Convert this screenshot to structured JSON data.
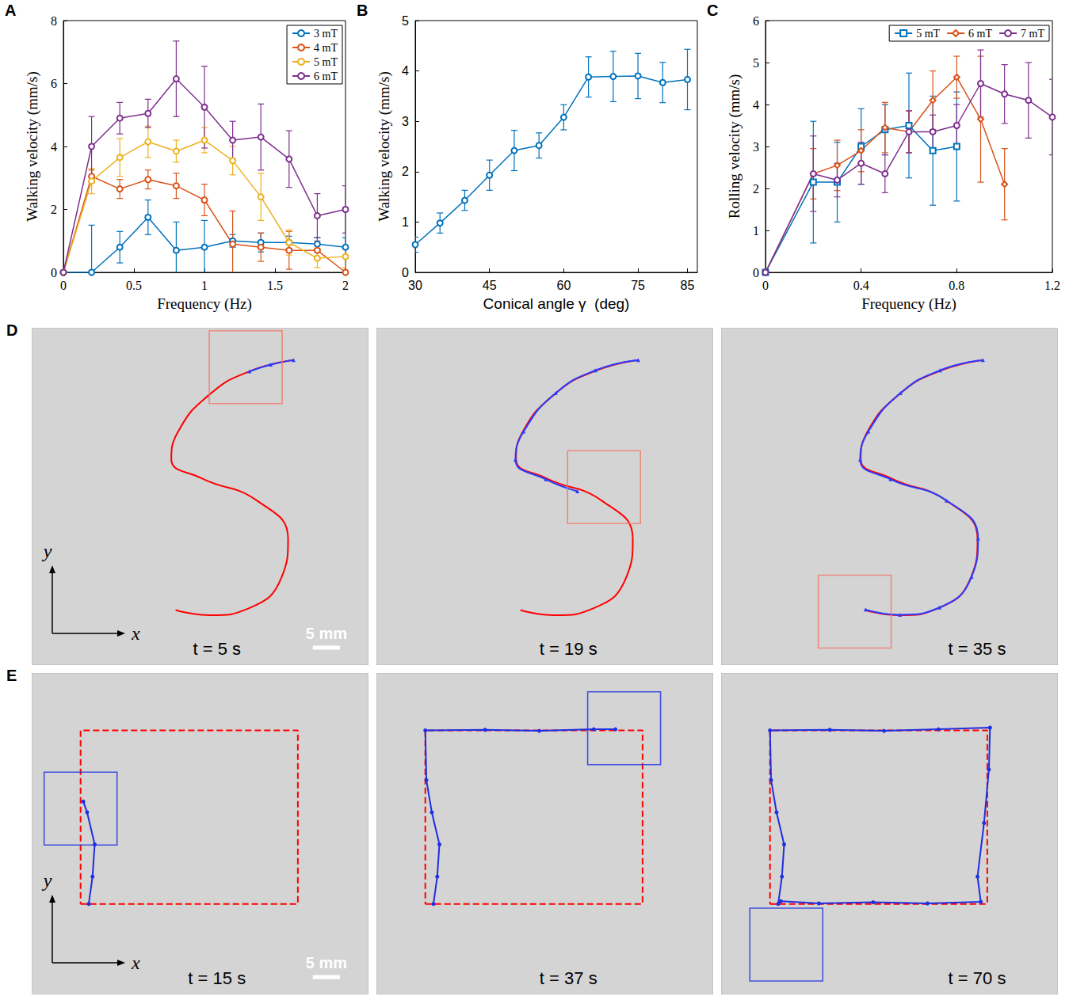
{
  "chart_data": [
    {
      "panel": "A",
      "type": "line",
      "xlabel": "Frequency (Hz)",
      "ylabel": "Walking velocity (mm/s)",
      "x": [
        0,
        0.2,
        0.4,
        0.6,
        0.8,
        1,
        1.2,
        1.4,
        1.6,
        1.8,
        2
      ],
      "xlim": [
        0,
        2
      ],
      "xticks": [
        0,
        0.5,
        1,
        1.5,
        2
      ],
      "ylim": [
        0,
        8
      ],
      "yticks": [
        0,
        2,
        4,
        6,
        8
      ],
      "legend": "upper right",
      "series": [
        {
          "name": "3 mT",
          "color": "#0072bd",
          "marker": "open circle",
          "values": [
            0,
            0,
            0.8,
            1.75,
            0.7,
            0.8,
            1.0,
            0.95,
            0.95,
            0.9,
            0.8
          ],
          "errors": [
            0,
            1.5,
            0.5,
            0.55,
            0.9,
            0.85,
            0.2,
            0.3,
            0.2,
            0.2,
            0.3
          ]
        },
        {
          "name": "4 mT",
          "color": "#d95319",
          "marker": "open circle",
          "values": [
            0,
            3.05,
            2.65,
            2.95,
            2.75,
            2.3,
            0.9,
            0.8,
            0.7,
            0.7,
            0
          ],
          "errors": [
            0,
            0.2,
            0.3,
            0.3,
            0.4,
            0.5,
            1.05,
            0.45,
            0.6,
            0.3,
            0
          ]
        },
        {
          "name": "5 mT",
          "color": "#edb120",
          "marker": "open circle",
          "values": [
            0,
            2.9,
            3.65,
            4.15,
            3.85,
            4.2,
            3.55,
            2.4,
            0.95,
            0.45,
            0.5
          ],
          "errors": [
            0,
            0.4,
            0.6,
            0.5,
            0.35,
            0.4,
            0.45,
            0.75,
            0.4,
            0.3,
            0.35
          ]
        },
        {
          "name": "6 mT",
          "color": "#7e2f8e",
          "marker": "open circle",
          "values": [
            0,
            4.0,
            4.9,
            5.05,
            6.15,
            5.25,
            4.2,
            4.3,
            3.6,
            1.8,
            2.0
          ],
          "errors": [
            0,
            0.95,
            0.5,
            0.45,
            1.2,
            1.3,
            0.6,
            1.05,
            0.9,
            0.7,
            0.75
          ]
        }
      ]
    },
    {
      "panel": "B",
      "type": "line",
      "xlabel": "Conical angle γ  (deg)",
      "ylabel": "Walking velocity (mm/s)",
      "x": [
        30,
        35,
        40,
        45,
        50,
        55,
        60,
        65,
        70,
        75,
        80,
        85
      ],
      "values": [
        0.55,
        0.98,
        1.43,
        1.93,
        2.42,
        2.52,
        3.08,
        3.88,
        3.89,
        3.9,
        3.77,
        3.83
      ],
      "errors": [
        0.15,
        0.2,
        0.2,
        0.3,
        0.4,
        0.25,
        0.25,
        0.4,
        0.5,
        0.45,
        0.4,
        0.6
      ],
      "color": "#0072bd",
      "marker": "open circle",
      "xlim": [
        30,
        87
      ],
      "xticks": [
        30,
        45,
        60,
        75,
        85
      ],
      "ylim": [
        0,
        5
      ],
      "yticks": [
        0,
        1,
        2,
        3,
        4,
        5
      ]
    },
    {
      "panel": "C",
      "type": "line",
      "xlabel": "Frequency (Hz)",
      "ylabel": "Rolling velocity (mm/s)",
      "xlim": [
        0,
        1.2
      ],
      "xticks": [
        0,
        0.4,
        0.8,
        1.2
      ],
      "ylim": [
        0,
        6
      ],
      "yticks": [
        0,
        1,
        2,
        3,
        4,
        5,
        6
      ],
      "legend": "upper right",
      "series": [
        {
          "name": "5 mT",
          "color": "#0072bd",
          "marker": "open square",
          "x": [
            0,
            0.2,
            0.3,
            0.4,
            0.5,
            0.6,
            0.7,
            0.8
          ],
          "values": [
            0,
            2.15,
            2.15,
            3.0,
            3.4,
            3.5,
            2.9,
            3.0
          ],
          "errors": [
            0,
            1.45,
            0.95,
            0.9,
            0.6,
            1.25,
            1.3,
            1.3
          ]
        },
        {
          "name": "6 mT",
          "color": "#d95319",
          "marker": "open diamond",
          "x": [
            0,
            0.2,
            0.3,
            0.4,
            0.5,
            0.6,
            0.7,
            0.8,
            0.9,
            1.0
          ],
          "values": [
            0,
            2.35,
            2.55,
            2.9,
            3.45,
            3.35,
            4.1,
            4.65,
            3.65,
            2.1
          ],
          "errors": [
            0,
            0.6,
            0.6,
            0.5,
            0.6,
            0.5,
            0.7,
            0.5,
            1.5,
            0.85
          ]
        },
        {
          "name": "7 mT",
          "color": "#7e2f8e",
          "marker": "open circle",
          "x": [
            0,
            0.2,
            0.3,
            0.4,
            0.5,
            0.6,
            0.7,
            0.8,
            0.9,
            1.0,
            1.1,
            1.2
          ],
          "values": [
            0,
            2.35,
            2.2,
            2.6,
            2.35,
            3.35,
            3.35,
            3.5,
            4.5,
            4.25,
            4.1,
            3.7
          ],
          "errors": [
            0,
            0.9,
            0.4,
            0.5,
            0.45,
            0.5,
            0.4,
            0.5,
            0.8,
            0.7,
            0.9,
            0.9
          ]
        }
      ]
    },
    {
      "panel": "D",
      "type": "spline",
      "tick_labels": false,
      "xlim": [
        0,
        62
      ],
      "ylim": [
        0,
        65
      ],
      "axis_labels": {
        "x": "x",
        "y": "y"
      },
      "scale_bar": {
        "length": 5,
        "label": "5 mm"
      },
      "target": {
        "color": "#ff0000",
        "line_style": "solid",
        "x": [
          48.2,
          40.1,
          32.8,
          26.9,
          25.7,
          31.3,
          41.6,
          47.2,
          46.0,
          40.1,
          32.8,
          26.5
        ],
        "y": [
          58.8,
          56.6,
          52.2,
          44.9,
          39.7,
          36.0,
          31.6,
          24.3,
          16.9,
          11.0,
          9.6,
          10.6
        ]
      },
      "track": {
        "color": "#2a3cff",
        "marker": "triangle"
      },
      "robot_color": "#f07868",
      "frames": [
        {
          "label": "t = 5 s",
          "robot": [
            39.4,
            57.4
          ],
          "track": {
            "x": [
              48.2,
              44.0,
              40.1
            ],
            "y": [
              58.8,
              57.9,
              56.6
            ]
          }
        },
        {
          "label": "t = 19 s",
          "robot": [
            41.9,
            34.3
          ],
          "track": {
            "x": [
              48.2,
              40.3,
              33.0,
              27.1,
              25.6,
              31.2,
              37.0
            ],
            "y": [
              58.8,
              56.8,
              52.4,
              45.0,
              39.6,
              35.8,
              33.5
            ]
          }
        },
        {
          "label": "t = 35 s",
          "robot": [
            24.6,
            10.3
          ],
          "track": {
            "x": [
              48.2,
              40.3,
              33.0,
              27.1,
              25.6,
              31.2,
              41.5,
              47.3,
              46.1,
              40.2,
              32.9,
              26.6
            ],
            "y": [
              58.8,
              56.8,
              52.4,
              45.0,
              39.6,
              35.8,
              31.7,
              24.4,
              17.0,
              11.1,
              9.7,
              10.7
            ]
          }
        }
      ]
    },
    {
      "panel": "E",
      "type": "line",
      "tick_labels": false,
      "xlim": [
        0,
        62
      ],
      "ylim": [
        0,
        60
      ],
      "axis_labels": {
        "x": "x",
        "y": "y"
      },
      "scale_bar": {
        "length": 5,
        "label": "5 mm"
      },
      "target": {
        "color": "#ff0000",
        "line_style": "dashed",
        "x": [
          9,
          49,
          49,
          9,
          9
        ],
        "y": [
          16.9,
          16.9,
          49.3,
          49.3,
          16.9
        ]
      },
      "track": {
        "color": "#1f2ee0",
        "marker": "circle"
      },
      "robot_color": "#1f2ee0",
      "frames": [
        {
          "label": "t = 15 s",
          "robot": [
            9.0,
            34.7
          ],
          "track": {
            "x": [
              10.5,
              11.2,
              11.6,
              10.2,
              9.5
            ],
            "y": [
              16.9,
              22,
              28,
              34,
              36
            ]
          }
        },
        {
          "label": "t = 37 s",
          "robot": [
            45.6,
            49.7
          ],
          "track": {
            "x": [
              10.5,
              11.2,
              11.6,
              10.2,
              9.2,
              9,
              20,
              30,
              40,
              44
            ],
            "y": [
              16.9,
              22,
              28,
              34,
              40,
              49.3,
              49.4,
              49.2,
              49.5,
              49.5
            ]
          }
        },
        {
          "label": "t = 70 s",
          "robot": [
            12.0,
            9.3
          ],
          "track": {
            "x": [
              10.5,
              11.2,
              11.6,
              10.2,
              9.2,
              9,
              20,
              30,
              40,
              49.5,
              49.3,
              48.4,
              47.2,
              47.8,
              38,
              28,
              18,
              11
            ],
            "y": [
              16.9,
              22,
              28,
              34,
              40,
              49.3,
              49.4,
              49.2,
              49.5,
              49.8,
              42,
              32,
              22,
              17.3,
              17,
              17.2,
              17,
              17.4
            ]
          }
        }
      ]
    }
  ]
}
